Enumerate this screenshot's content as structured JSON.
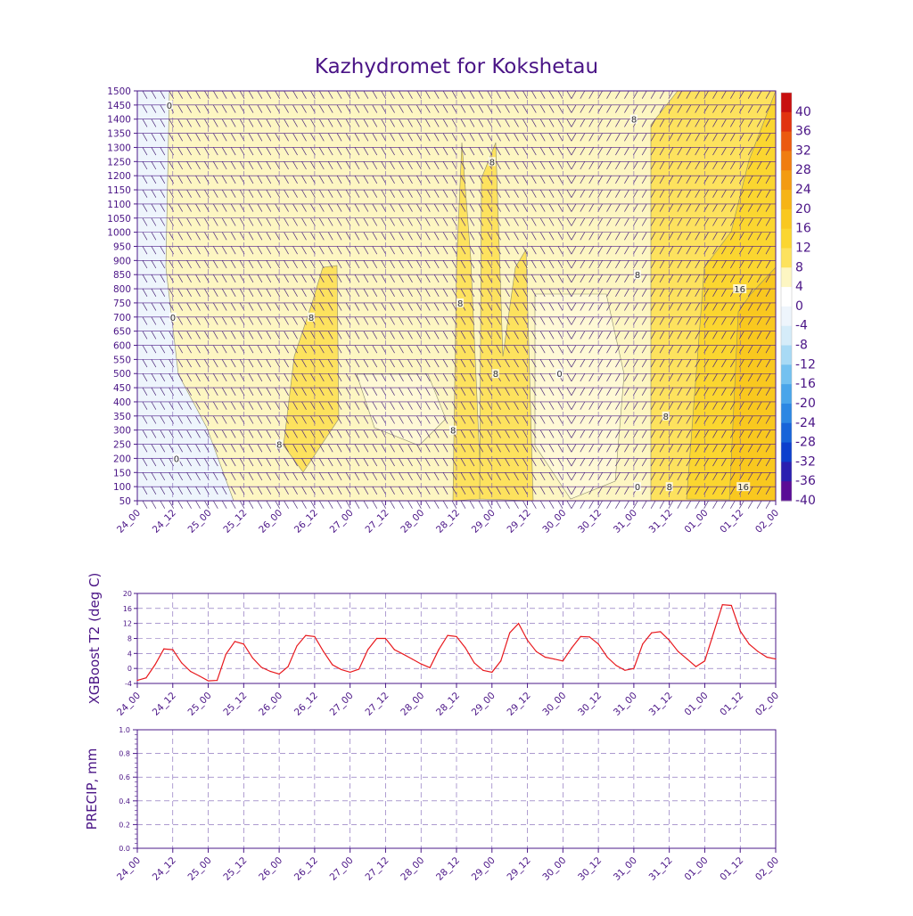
{
  "title": "Kazhydromet for Kokshetau",
  "colors": {
    "frame": "#4b1a8a",
    "grid": "#7b5fb3",
    "t2_line": "#e8191e",
    "wind": "#4b2a7a",
    "contour": "#8c8c6e",
    "bg_base": "#fdf6c2"
  },
  "chart_data": [
    {
      "type": "heatmap",
      "name": "cross-section",
      "x_ticks": [
        "24_00",
        "24_12",
        "25_00",
        "25_12",
        "26_00",
        "26_12",
        "27_00",
        "27_12",
        "28_00",
        "28_12",
        "29_00",
        "29_12",
        "30_00",
        "30_12",
        "31_00",
        "31_12",
        "01_00",
        "01_12",
        "02_00"
      ],
      "y_ticks": [
        "50",
        "100",
        "150",
        "200",
        "250",
        "300",
        "350",
        "400",
        "450",
        "500",
        "550",
        "600",
        "650",
        "700",
        "750",
        "800",
        "850",
        "900",
        "950",
        "1000",
        "1050",
        "1100",
        "1150",
        "1200",
        "1250",
        "1300",
        "1350",
        "1400",
        "1450",
        "1500"
      ],
      "ylim": [
        50,
        1500
      ],
      "colorbar_labels": [
        "40",
        "36",
        "32",
        "28",
        "24",
        "20",
        "16",
        "12",
        "8",
        "4",
        "0",
        "-4",
        "-8",
        "-12",
        "-16",
        "-20",
        "-24",
        "-28",
        "-32",
        "-36",
        "-40"
      ],
      "colorbar_colors": [
        "#c80f0f",
        "#e1330f",
        "#eb5a0f",
        "#f07d10",
        "#f39b12",
        "#f6b416",
        "#f9c81f",
        "#fbd630",
        "#fde25e",
        "#fdf6c2",
        "#ffffff",
        "#eef5fc",
        "#d5ecf9",
        "#a8daf5",
        "#74c1f0",
        "#4aa5ea",
        "#2c87e3",
        "#1764d9",
        "#0d3fcd",
        "#2a1fb0",
        "#5a0c96"
      ],
      "contour_labels": [
        {
          "text": "0",
          "x": "24_12",
          "y": 1450
        },
        {
          "text": "0",
          "x": "24_12",
          "y": 700
        },
        {
          "text": "0",
          "x": "24_12",
          "y": 200
        },
        {
          "text": "8",
          "x": "26_12",
          "y": 700
        },
        {
          "text": "8",
          "x": "26_00",
          "y": 250
        },
        {
          "text": "8",
          "x": "28_12",
          "y": 750
        },
        {
          "text": "8",
          "x": "28_12",
          "y": 300
        },
        {
          "text": "8",
          "x": "29_00",
          "y": 1250
        },
        {
          "text": "8",
          "x": "29_00",
          "y": 500
        },
        {
          "text": "0",
          "x": "30_00",
          "y": 500
        },
        {
          "text": "8",
          "x": "31_00",
          "y": 1400
        },
        {
          "text": "8",
          "x": "31_00",
          "y": 850
        },
        {
          "text": "8",
          "x": "31_12",
          "y": 350
        },
        {
          "text": "8",
          "x": "31_12",
          "y": 100
        },
        {
          "text": "0",
          "x": "31_00",
          "y": 100
        },
        {
          "text": "16",
          "x": "01_12",
          "y": 800
        },
        {
          "text": "16",
          "x": "01_12",
          "y": 100
        }
      ]
    },
    {
      "type": "line",
      "name": "t2",
      "ylabel": "XGBoost T2 (deg C)",
      "ylim": [
        -4,
        20
      ],
      "y_ticks": [
        "-4",
        "0",
        "4",
        "8",
        "12",
        "16",
        "20"
      ],
      "x_ticks": [
        "24_00",
        "24_12",
        "25_00",
        "25_12",
        "26_00",
        "26_12",
        "27_00",
        "27_12",
        "28_00",
        "28_12",
        "29_00",
        "29_12",
        "30_00",
        "30_12",
        "31_00",
        "31_12",
        "01_00",
        "01_12",
        "02_00"
      ],
      "x": [
        0,
        3,
        6,
        9,
        12,
        15,
        18,
        21,
        24,
        27,
        30,
        33,
        36,
        39,
        42,
        45,
        48,
        51,
        54,
        57,
        60,
        63,
        66,
        69,
        72,
        75,
        78,
        81,
        84,
        87,
        90,
        93,
        96,
        99,
        102,
        105,
        108,
        111,
        114,
        117,
        120,
        123,
        126,
        129,
        132,
        135,
        138,
        141,
        144,
        147,
        150,
        153,
        156,
        159,
        162,
        165,
        168,
        171,
        174,
        177,
        180,
        183,
        186,
        189,
        192,
        195,
        198,
        201,
        204,
        207,
        210,
        213,
        216
      ],
      "values": [
        -3.2,
        -2.5,
        1.0,
        5.2,
        5.0,
        1.5,
        -0.8,
        -2.0,
        -3.3,
        -3.2,
        3.8,
        7.2,
        6.5,
        2.8,
        0.3,
        -0.8,
        -1.5,
        0.5,
        6.0,
        8.8,
        8.5,
        4.5,
        1.0,
        -0.3,
        -1.0,
        -0.2,
        5.0,
        8.0,
        8.0,
        5.0,
        3.8,
        2.5,
        1.2,
        0.2,
        5.0,
        8.8,
        8.5,
        5.5,
        1.5,
        -0.5,
        -1.0,
        2.0,
        9.5,
        12.0,
        7.5,
        4.5,
        3.0,
        2.5,
        2.0,
        5.5,
        8.5,
        8.4,
        6.5,
        3.0,
        0.8,
        -0.5,
        0.0,
        6.5,
        9.5,
        9.8,
        7.5,
        4.5,
        2.5,
        0.5,
        2.0,
        9.5,
        17.0,
        16.8,
        10.0,
        6.5,
        4.5,
        3.0,
        2.5
      ]
    },
    {
      "type": "line",
      "name": "precip",
      "ylabel": "PRECIP, mm",
      "ylim": [
        0,
        1
      ],
      "y_ticks": [
        "0.0",
        "0.2",
        "0.4",
        "0.6",
        "0.8",
        "1.0"
      ],
      "x_ticks": [
        "24_00",
        "24_12",
        "25_00",
        "25_12",
        "26_00",
        "26_12",
        "27_00",
        "27_12",
        "28_00",
        "28_12",
        "29_00",
        "29_12",
        "30_00",
        "30_12",
        "31_00",
        "31_12",
        "01_00",
        "01_12",
        "02_00"
      ],
      "values": []
    }
  ]
}
